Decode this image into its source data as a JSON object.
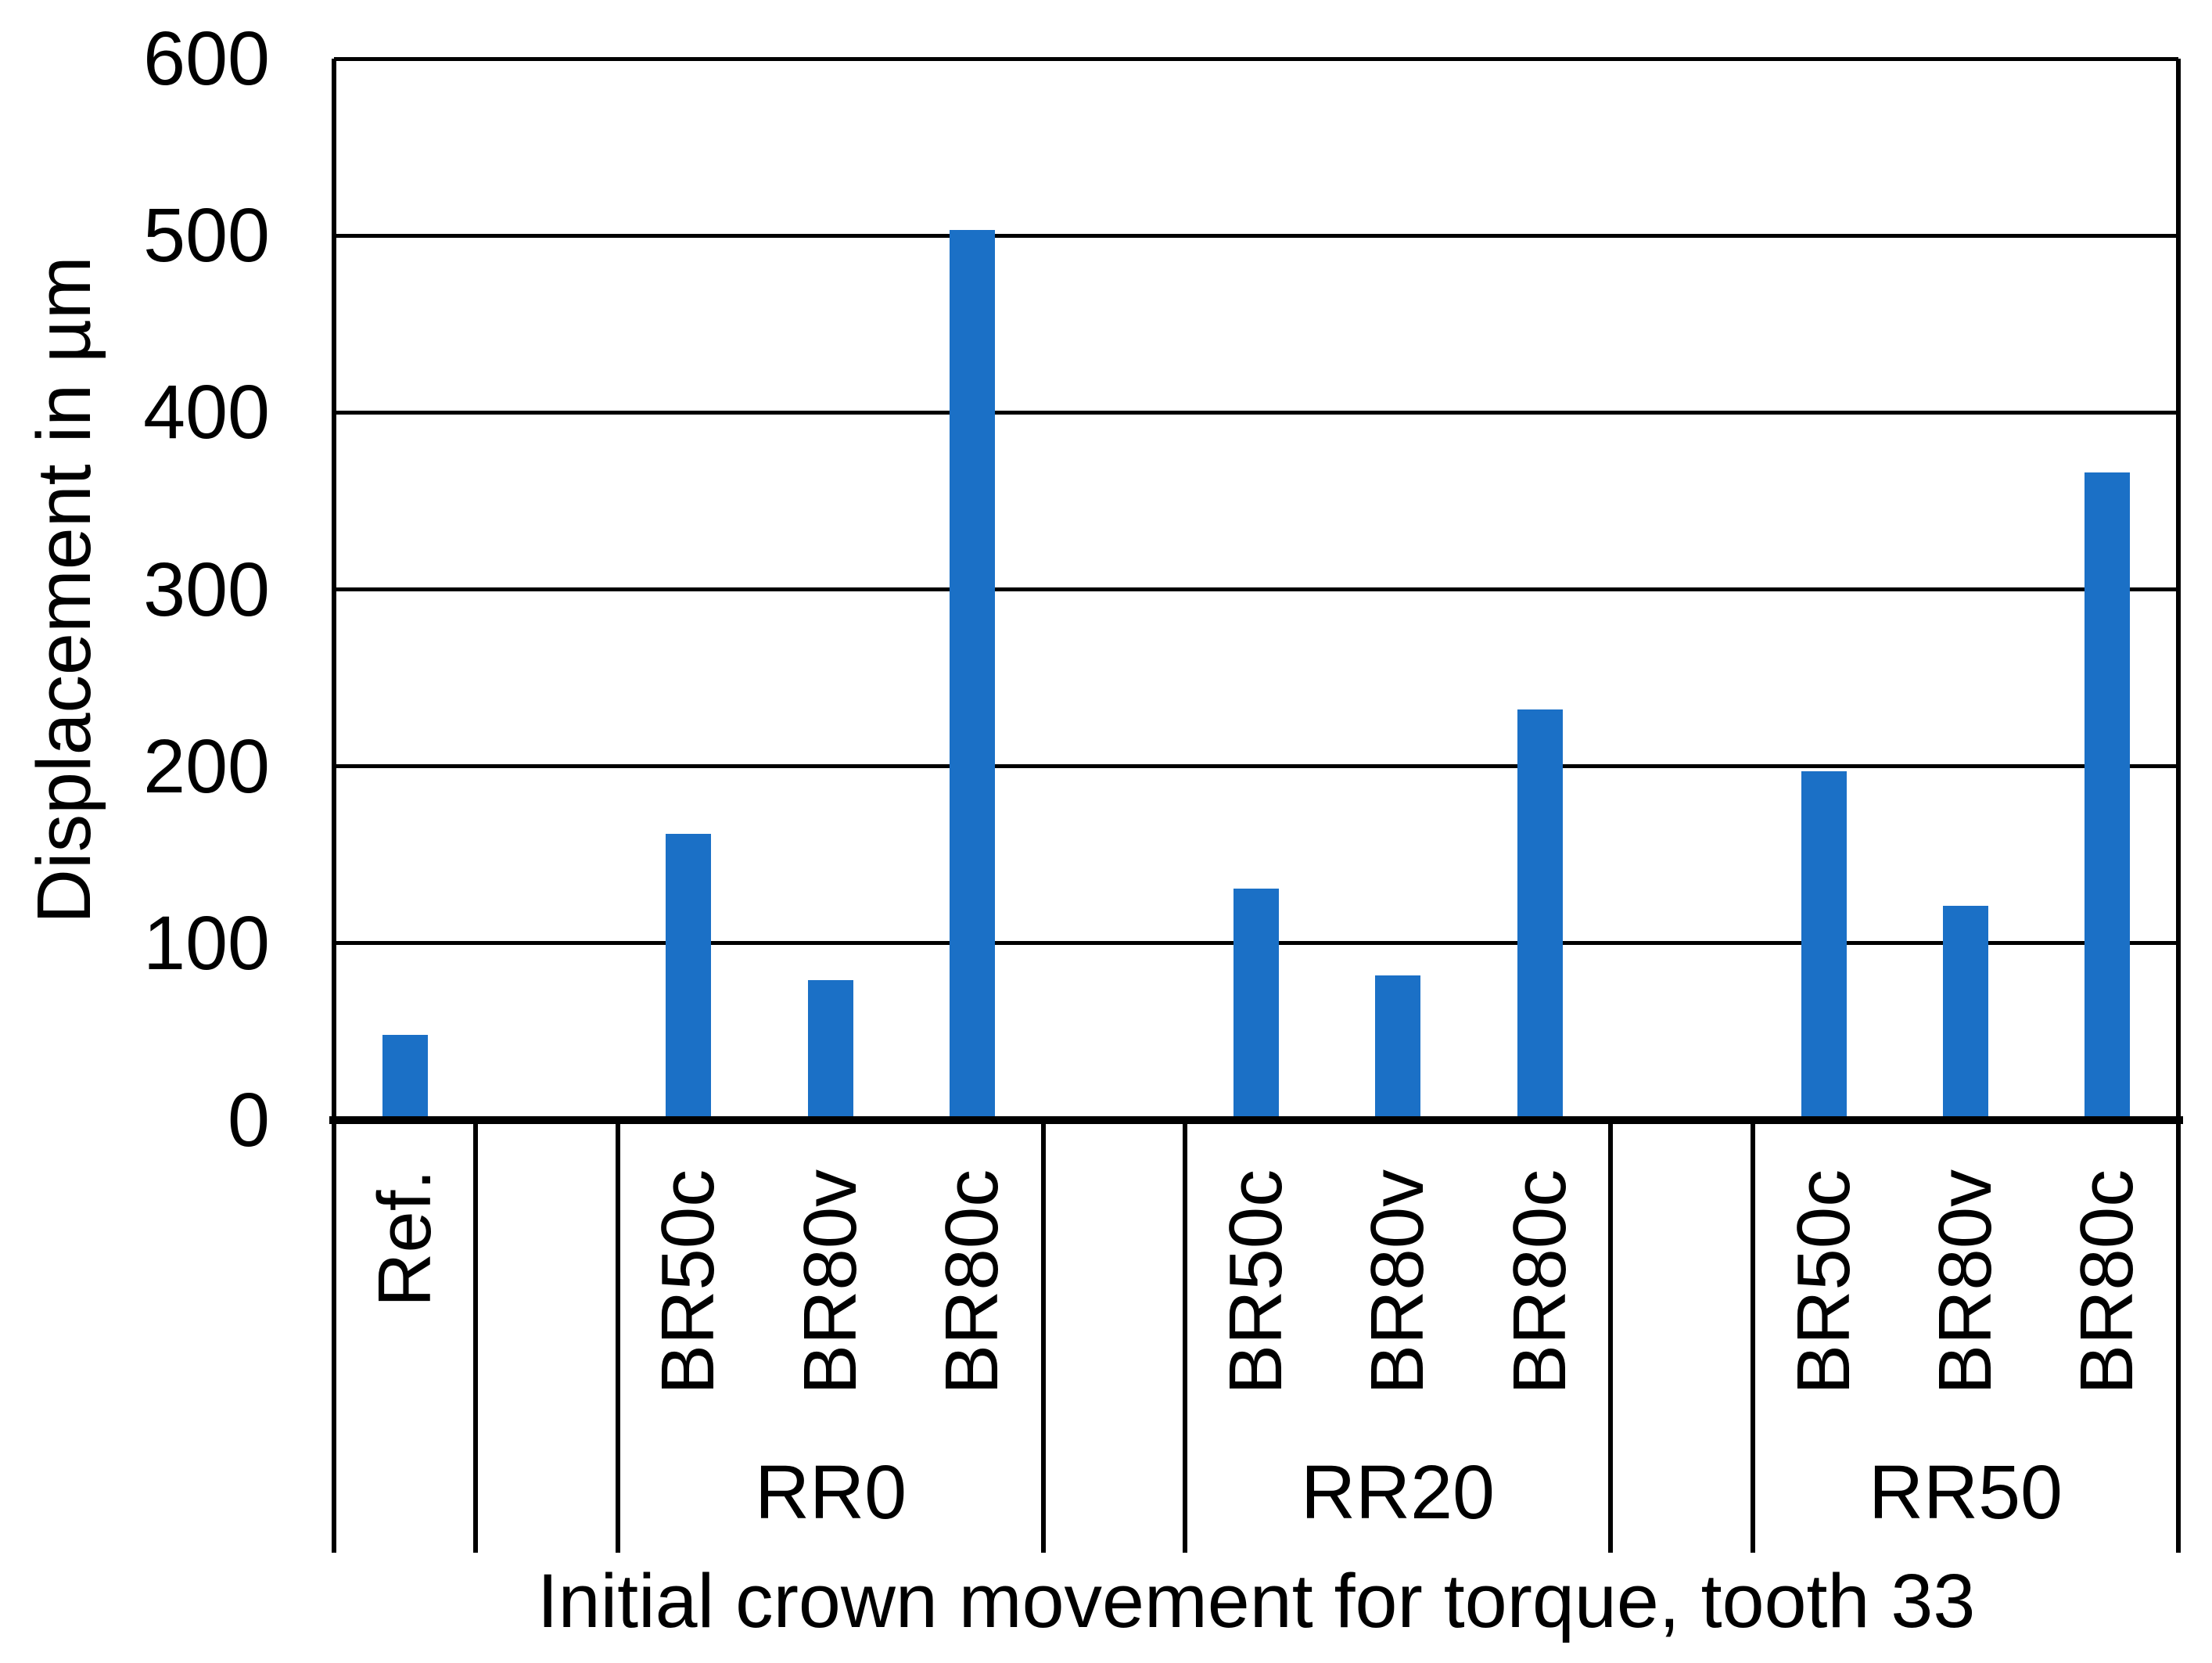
{
  "chart_data": {
    "type": "bar",
    "title": "",
    "xlabel": "Initial crown movement for torque, tooth 33",
    "ylabel": "Displacement in µm",
    "ylim": [
      0,
      600
    ],
    "ytick_step": 100,
    "yticks": [
      "0",
      "100",
      "200",
      "300",
      "400",
      "500",
      "600"
    ],
    "grid": true,
    "legend": null,
    "categories": [
      "Ref.",
      "",
      "BR50c",
      "BR80v",
      "BR80c",
      "",
      "BR50c",
      "BR80v",
      "BR80c",
      "",
      "BR50c",
      "BR80v",
      "BR80c"
    ],
    "values": [
      48,
      null,
      162,
      79,
      503,
      null,
      131,
      82,
      232,
      null,
      197,
      121,
      366
    ],
    "groups": [
      {
        "label": "",
        "span": [
          0,
          0
        ]
      },
      {
        "label": "",
        "span": [
          1,
          1
        ]
      },
      {
        "label": "RR0",
        "span": [
          2,
          4
        ]
      },
      {
        "label": "",
        "span": [
          5,
          5
        ]
      },
      {
        "label": "RR20",
        "span": [
          6,
          8
        ]
      },
      {
        "label": "",
        "span": [
          9,
          9
        ]
      },
      {
        "label": "RR50",
        "span": [
          10,
          12
        ]
      }
    ],
    "bar_color": "#1B70C6",
    "axis_color": "#000000",
    "gridline_color": "#000000"
  }
}
